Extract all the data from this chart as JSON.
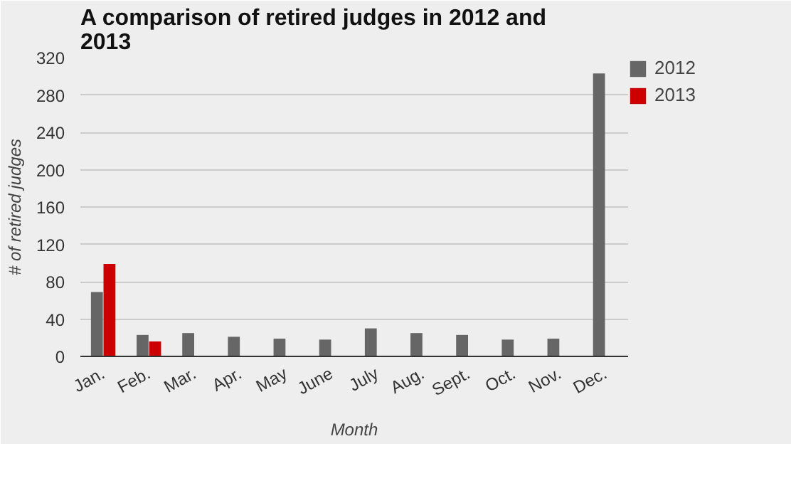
{
  "chart_data": {
    "type": "bar",
    "title": "A comparison of retired judges in 2012 and 2013",
    "xlabel": "Month",
    "ylabel": "# of retired judges",
    "categories": [
      "Jan.",
      "Feb.",
      "Mar.",
      "Apr.",
      "May",
      "June",
      "July",
      "Aug.",
      "Sept.",
      "Oct.",
      "Nov.",
      "Dec."
    ],
    "series": [
      {
        "name": "2012",
        "color": "#666666",
        "values": [
          69,
          23,
          25,
          21,
          19,
          18,
          30,
          25,
          23,
          18,
          19,
          303
        ]
      },
      {
        "name": "2013",
        "color": "#cc0000",
        "values": [
          99,
          16,
          null,
          null,
          null,
          null,
          null,
          null,
          null,
          null,
          null,
          null
        ]
      }
    ],
    "ylim": [
      0,
      320
    ],
    "yticks": [
      0,
      40,
      80,
      120,
      160,
      200,
      240,
      280,
      320
    ],
    "grid": "y",
    "legend": "top right"
  }
}
